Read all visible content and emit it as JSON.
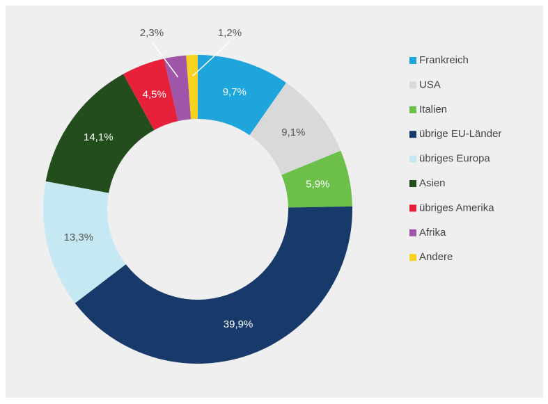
{
  "chart_data": {
    "type": "donut",
    "categories": [
      "Frankreich",
      "USA",
      "Italien",
      "übrige EU-Länder",
      "übriges Europa",
      "Asien",
      "übriges Amerika",
      "Afrika",
      "Andere"
    ],
    "values": [
      9.7,
      9.1,
      5.9,
      39.9,
      13.3,
      14.1,
      4.5,
      2.3,
      1.2
    ],
    "value_labels": [
      "9,7%",
      "9,1%",
      "5,9%",
      "39,9%",
      "13,3%",
      "14,1%",
      "4,5%",
      "2,3%",
      "1,2%"
    ],
    "colors": [
      "#1ea5dc",
      "#d9d9d9",
      "#6cc04a",
      "#173a6a",
      "#c5e8f3",
      "#244d1e",
      "#e8213a",
      "#a056a8",
      "#f7d21e"
    ],
    "legend": "right"
  }
}
